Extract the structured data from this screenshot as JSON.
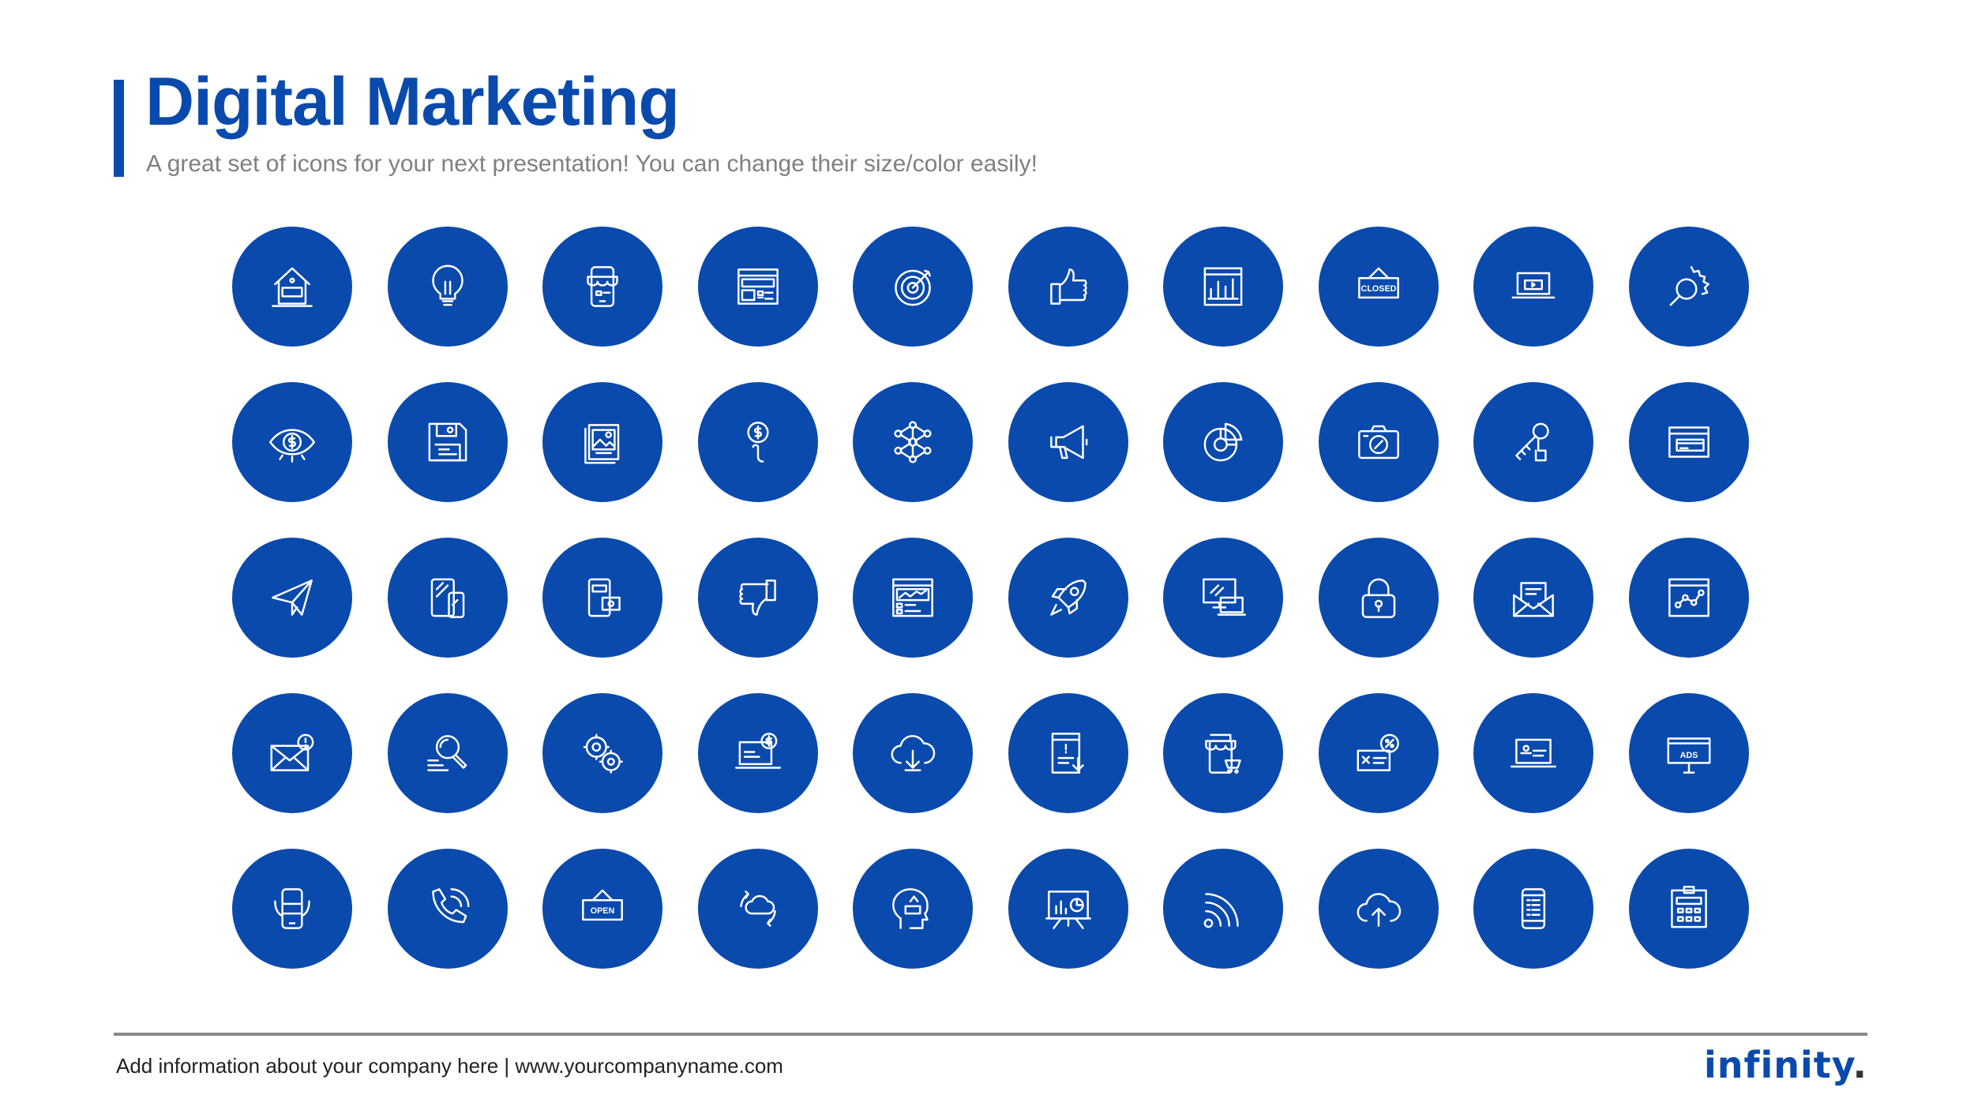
{
  "header": {
    "title": "Digital Marketing",
    "subtitle": "A great set of icons for your next presentation! You can change their size/color easily!"
  },
  "colors": {
    "accent": "#0a4aad",
    "icon_stroke": "#ffffff",
    "footer_rule": "#8a8a8a"
  },
  "icons": [
    {
      "name": "website-home-icon"
    },
    {
      "name": "lightbulb-icon"
    },
    {
      "name": "mobile-shop-icon"
    },
    {
      "name": "web-layout-icon"
    },
    {
      "name": "target-icon"
    },
    {
      "name": "thumbs-up-icon"
    },
    {
      "name": "bar-chart-window-icon"
    },
    {
      "name": "closed-sign-icon",
      "label": "CLOSED"
    },
    {
      "name": "video-laptop-icon"
    },
    {
      "name": "gear-search-icon"
    },
    {
      "name": "eye-dollar-icon"
    },
    {
      "name": "floppy-disk-icon"
    },
    {
      "name": "image-gallery-icon"
    },
    {
      "name": "dollar-touch-icon"
    },
    {
      "name": "network-icon"
    },
    {
      "name": "megaphone-icon"
    },
    {
      "name": "pie-chart-icon"
    },
    {
      "name": "camera-icon"
    },
    {
      "name": "key-icon"
    },
    {
      "name": "credit-card-browser-icon"
    },
    {
      "name": "paper-plane-icon"
    },
    {
      "name": "devices-icon"
    },
    {
      "name": "mobile-payment-icon"
    },
    {
      "name": "thumbs-down-icon"
    },
    {
      "name": "analytics-window-icon"
    },
    {
      "name": "rocket-icon"
    },
    {
      "name": "computer-devices-icon"
    },
    {
      "name": "lock-icon"
    },
    {
      "name": "envelope-open-icon"
    },
    {
      "name": "line-chart-window-icon"
    },
    {
      "name": "email-alert-icon"
    },
    {
      "name": "search-data-icon"
    },
    {
      "name": "gears-icon"
    },
    {
      "name": "laptop-dollar-icon"
    },
    {
      "name": "cloud-download-icon"
    },
    {
      "name": "document-download-icon"
    },
    {
      "name": "mobile-shop-cart-icon"
    },
    {
      "name": "discount-card-icon"
    },
    {
      "name": "laptop-profile-icon"
    },
    {
      "name": "ads-billboard-icon",
      "label": "ADS"
    },
    {
      "name": "mobile-hands-icon"
    },
    {
      "name": "phone-call-icon"
    },
    {
      "name": "open-sign-icon",
      "label": "OPEN"
    },
    {
      "name": "cloud-sync-icon"
    },
    {
      "name": "head-idea-icon"
    },
    {
      "name": "presentation-chart-icon"
    },
    {
      "name": "wifi-signal-icon"
    },
    {
      "name": "cloud-upload-icon"
    },
    {
      "name": "mobile-list-icon"
    },
    {
      "name": "calculator-icon"
    }
  ],
  "footer": {
    "info": "Add information about your company here | www.yourcompanyname.com",
    "logo_text": "infinity",
    "logo_dot": "."
  }
}
